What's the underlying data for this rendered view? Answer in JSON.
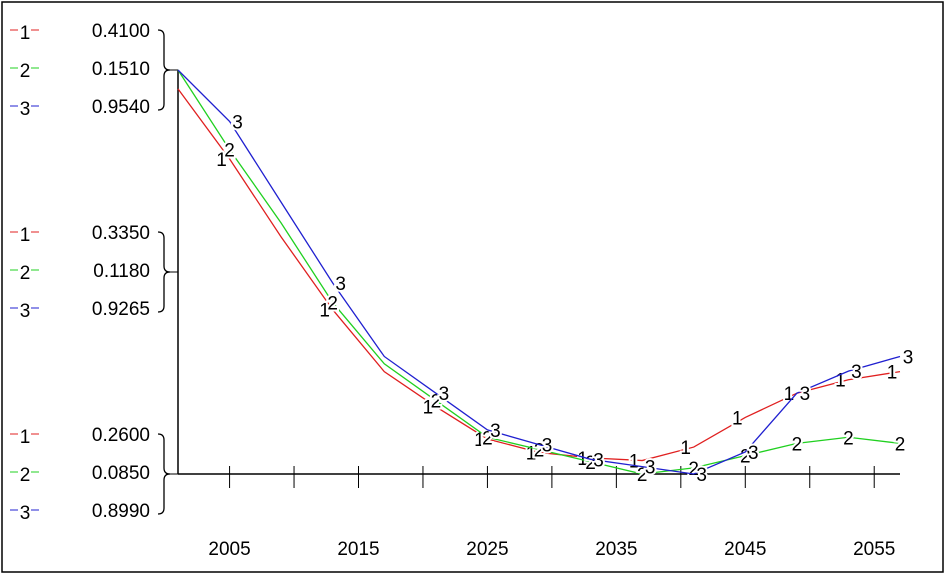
{
  "chart_data": {
    "type": "line",
    "x": [
      2001,
      2005,
      2009,
      2013,
      2017,
      2021,
      2025,
      2029,
      2033,
      2037,
      2041,
      2045,
      2049,
      2053,
      2057
    ],
    "xlim": [
      2001,
      2057
    ],
    "xticks": [
      2005,
      2015,
      2025,
      2035,
      2045,
      2055
    ],
    "xminor_ticks": [
      2010,
      2020,
      2030,
      2040,
      2050
    ],
    "series": [
      {
        "name": "1",
        "color": "#e02020",
        "values": [
          0.403,
          0.377,
          0.348,
          0.321,
          0.298,
          0.285,
          0.273,
          0.268,
          0.266,
          0.265,
          0.27,
          0.281,
          0.29,
          0.295,
          0.298
        ],
        "ylim": [
          0.26,
          0.41
        ],
        "yticks": [
          {
            "value": 0.26,
            "label": "0.2600"
          },
          {
            "value": 0.335,
            "label": "0.3350"
          },
          {
            "value": 0.41,
            "label": "0.4100"
          }
        ]
      },
      {
        "name": "2",
        "color": "#20d020",
        "values": [
          0.151,
          0.138,
          0.126,
          0.113,
          0.103,
          0.097,
          0.091,
          0.089,
          0.087,
          0.085,
          0.086,
          0.088,
          0.09,
          0.091,
          0.09
        ],
        "ylim": [
          0.085,
          0.151
        ],
        "yticks": [
          {
            "value": 0.085,
            "label": "0.0850"
          },
          {
            "value": 0.118,
            "label": "0.1180"
          },
          {
            "value": 0.151,
            "label": "0.1510"
          }
        ]
      },
      {
        "name": "3",
        "color": "#2020d0",
        "values": [
          0.954,
          0.947,
          0.936,
          0.925,
          0.915,
          0.91,
          0.905,
          0.903,
          0.901,
          0.9,
          0.899,
          0.902,
          0.91,
          0.913,
          0.915
        ],
        "ylim": [
          0.899,
          0.954
        ],
        "yticks": [
          {
            "value": 0.899,
            "label": "0.8990"
          },
          {
            "value": 0.9265,
            "label": "0.9265"
          },
          {
            "value": 0.954,
            "label": "0.9540"
          }
        ]
      }
    ]
  }
}
